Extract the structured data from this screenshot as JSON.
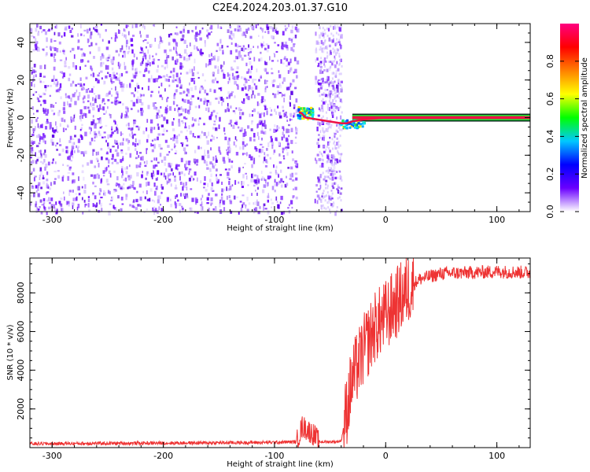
{
  "title": "C2E4.2024.203.01.37.G10",
  "chart_data": [
    {
      "type": "heatmap",
      "xlabel": "Height of straight line (km)",
      "ylabel": "Frequency (Hz)",
      "xlim": [
        -320,
        130
      ],
      "ylim": [
        -50,
        50
      ],
      "xticks": [
        -300,
        -200,
        -100,
        0,
        100
      ],
      "yticks": [
        -40,
        -20,
        0,
        20,
        40
      ],
      "noise_region_km": [
        -320,
        -40
      ],
      "gap_region_km": [
        -80,
        -64
      ],
      "signal": {
        "frequency_hz": 0,
        "trace": [
          {
            "x": -78,
            "y": 3
          },
          {
            "x": -75,
            "y": 2
          },
          {
            "x": -72,
            "y": 0
          },
          {
            "x": -40,
            "y": -3
          },
          {
            "x": -35,
            "y": -3
          },
          {
            "x": -30,
            "y": -2
          },
          {
            "x": -20,
            "y": -1
          },
          {
            "x": 0,
            "y": 0
          },
          {
            "x": 130,
            "y": 0
          }
        ]
      },
      "colorbar": {
        "label": "Normalized spectral amplitude",
        "range": [
          0,
          1
        ],
        "ticks": [
          "0.0",
          "0.2",
          "0.4",
          "0.6",
          "0.8"
        ],
        "colors": [
          "#ffffff",
          "#6a00ff",
          "#0000ff",
          "#00c8ff",
          "#00ff00",
          "#ffff00",
          "#ff8000",
          "#ff0000",
          "#ff0080"
        ]
      }
    },
    {
      "type": "line",
      "xlabel": "Height of straight line (km)",
      "ylabel": "SNR (10 * v/v)",
      "xlim": [
        -320,
        130
      ],
      "ylim": [
        0,
        9800
      ],
      "xticks": [
        -300,
        -200,
        -100,
        0,
        100
      ],
      "yticks": [
        2000,
        4000,
        6000,
        8000
      ],
      "color": "#ee3333",
      "series": [
        {
          "x": [
            -320,
            -250,
            -150,
            -100,
            -80,
            -75,
            -70,
            -65,
            -60,
            -45,
            -40,
            -35,
            -30,
            -20,
            -10,
            0,
            10,
            20,
            30,
            50,
            80,
            100,
            130
          ],
          "y": [
            200,
            220,
            250,
            270,
            300,
            1100,
            900,
            700,
            300,
            300,
            350,
            2000,
            3500,
            5000,
            6200,
            6800,
            7500,
            8200,
            8700,
            9000,
            9050,
            9100,
            9050
          ]
        }
      ]
    }
  ]
}
